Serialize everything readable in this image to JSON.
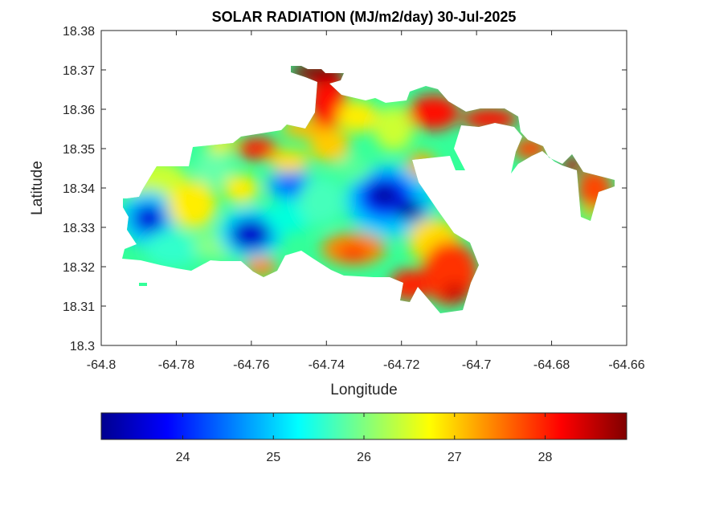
{
  "chart_data": {
    "type": "heatmap",
    "title": "SOLAR RADIATION (MJ/m2/day) 30-Jul-2025",
    "xlabel": "Longitude",
    "ylabel": "Latitude",
    "xlim": [
      -64.8,
      -64.66
    ],
    "ylim": [
      18.3,
      18.38
    ],
    "xticks": [
      "-64.8",
      "-64.78",
      "-64.76",
      "-64.74",
      "-64.72",
      "-64.7",
      "-64.68",
      "-64.66"
    ],
    "yticks": [
      "18.3",
      "18.31",
      "18.32",
      "18.33",
      "18.34",
      "18.35",
      "18.36",
      "18.37",
      "18.38"
    ],
    "grid": false,
    "colormap": "jet",
    "colorbar": {
      "placement": "bottom",
      "range": [
        23.1,
        28.9
      ],
      "ticks": [
        "24",
        "25",
        "26",
        "27",
        "28"
      ]
    },
    "extrema": {
      "min_areas": [
        {
          "lon": -64.788,
          "lat": 18.331,
          "value": 23.4
        },
        {
          "lon": -64.7595,
          "lat": 18.3275,
          "value": 23.6
        },
        {
          "lon": -64.7255,
          "lat": 18.338,
          "value": 23.3
        },
        {
          "lon": -64.7195,
          "lat": 18.334,
          "value": 23.5
        },
        {
          "lon": -64.749,
          "lat": 18.3405,
          "value": 24.6
        }
      ],
      "max_areas": [
        {
          "lon": -64.7485,
          "lat": 18.369,
          "value": 28.8
        },
        {
          "lon": -64.706,
          "lat": 18.314,
          "value": 28.3
        },
        {
          "lon": -64.6695,
          "lat": 18.3395,
          "value": 28.2
        },
        {
          "lon": -64.7155,
          "lat": 18.3605,
          "value": 28.0
        },
        {
          "lon": -64.7615,
          "lat": 18.3495,
          "value": 28.0
        }
      ]
    }
  },
  "colors": {
    "jet": [
      "#00008f",
      "#0000ff",
      "#00ffff",
      "#ffff00",
      "#ff0000",
      "#800000"
    ],
    "axes_text": "#262626"
  }
}
